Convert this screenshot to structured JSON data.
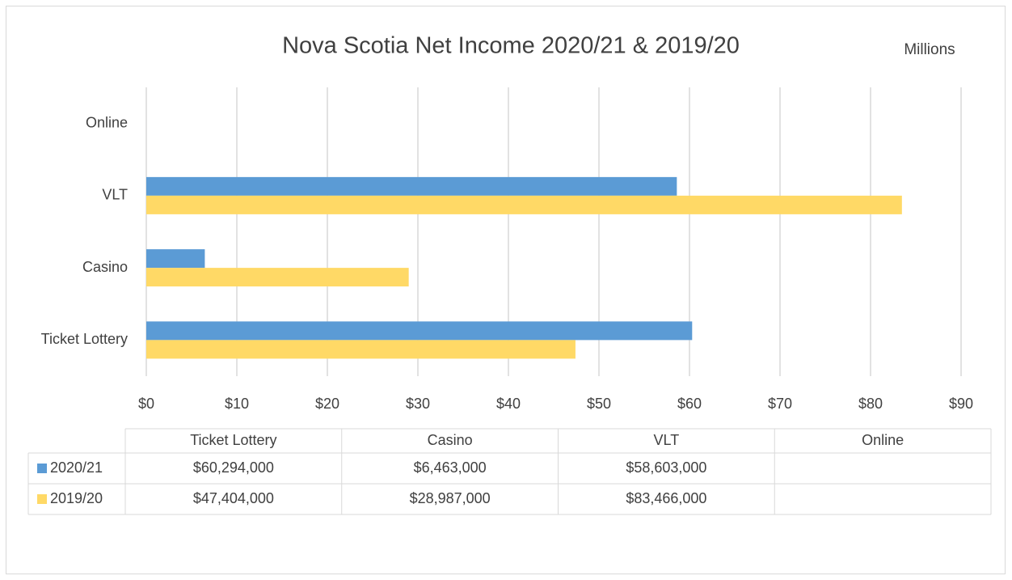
{
  "chart_data": {
    "type": "barh",
    "title": "Nova Scotia Net Income 2020/21 & 2019/20",
    "unit_label": "Millions",
    "categories": [
      "Ticket Lottery",
      "Casino",
      "VLT",
      "Online"
    ],
    "series": [
      {
        "name": "2020/21",
        "color": "#5b9bd5",
        "values": [
          60.294,
          6.463,
          58.603,
          null
        ],
        "value_labels": [
          "$60,294,000",
          "$6,463,000",
          "$58,603,000",
          null
        ]
      },
      {
        "name": "2019/20",
        "color": "#ffd966",
        "values": [
          47.404,
          28.987,
          83.466,
          null
        ],
        "value_labels": [
          "$47,404,000",
          "$28,987,000",
          "$83,466,000",
          null
        ]
      }
    ],
    "xlim": [
      0,
      90
    ],
    "xticks": [
      {
        "value": 0,
        "label": "$0"
      },
      {
        "value": 10,
        "label": "$10"
      },
      {
        "value": 20,
        "label": "$20"
      },
      {
        "value": 30,
        "label": "$30"
      },
      {
        "value": 40,
        "label": "$40"
      },
      {
        "value": 50,
        "label": "$50"
      },
      {
        "value": 60,
        "label": "$60"
      },
      {
        "value": 70,
        "label": "$70"
      },
      {
        "value": 80,
        "label": "$80"
      },
      {
        "value": 90,
        "label": "$90"
      }
    ],
    "grid": true,
    "data_table": true
  }
}
